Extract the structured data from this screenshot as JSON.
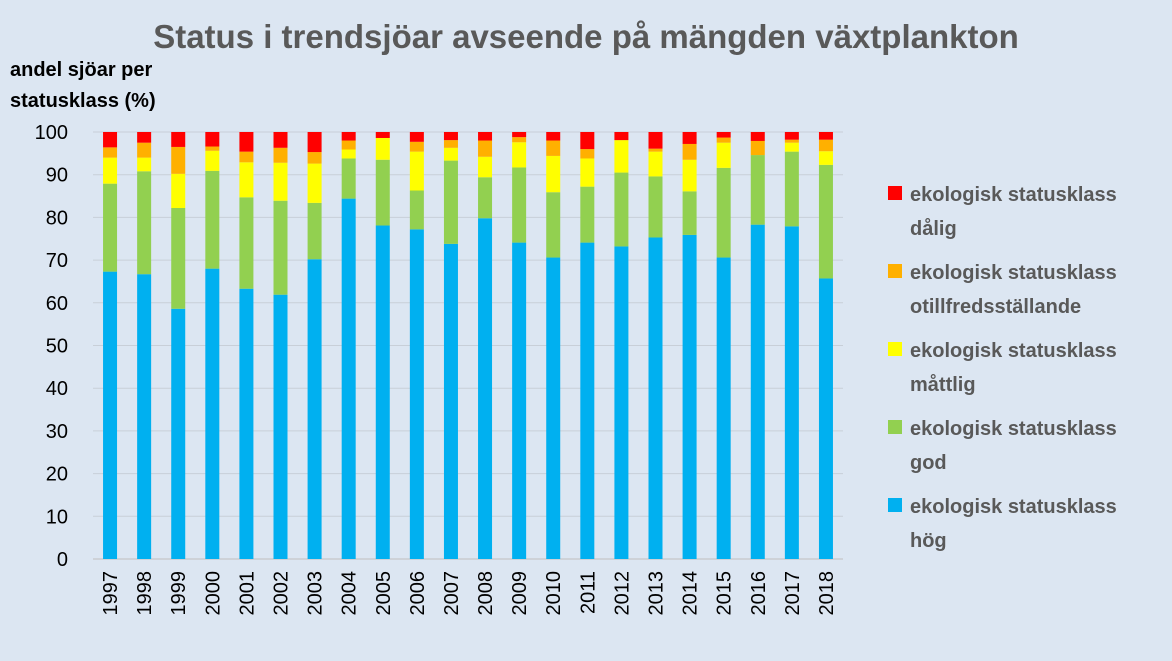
{
  "chart_data": {
    "type": "bar",
    "stacked": true,
    "title": "Status i trendsjöar avseende på mängden växtplankton",
    "ylabel_lines": [
      "andel sjöar per",
      "statusklass (%)"
    ],
    "xlabel": "",
    "ylim": [
      0,
      100
    ],
    "yticks": [
      0,
      10,
      20,
      30,
      40,
      50,
      60,
      70,
      80,
      90,
      100
    ],
    "grid": "horizontal",
    "legend_position": "right",
    "categories": [
      "1997",
      "1998",
      "1999",
      "2000",
      "2001",
      "2002",
      "2003",
      "2004",
      "2005",
      "2006",
      "2007",
      "2008",
      "2009",
      "2010",
      "2011",
      "2012",
      "2013",
      "2014",
      "2015",
      "2016",
      "2017",
      "2018"
    ],
    "series": [
      {
        "name": "ekologisk statusklass hög",
        "name_lines": [
          "ekologisk statusklass",
          "hög"
        ],
        "color": "#00b0f0",
        "values": [
          67.3,
          66.7,
          58.6,
          68.0,
          63.3,
          61.9,
          70.2,
          84.4,
          78.1,
          77.2,
          73.8,
          79.8,
          74.1,
          70.6,
          74.1,
          73.2,
          75.3,
          75.9,
          70.6,
          78.3,
          77.9,
          65.7
        ]
      },
      {
        "name": "ekologisk statusklass god",
        "name_lines": [
          "ekologisk statusklass",
          "god"
        ],
        "color": "#92d050",
        "values": [
          20.6,
          24.1,
          23.6,
          22.9,
          21.4,
          22.0,
          13.2,
          9.4,
          15.4,
          9.1,
          19.5,
          9.6,
          17.6,
          15.3,
          13.1,
          17.3,
          14.3,
          10.2,
          21.0,
          16.3,
          17.5,
          26.6
        ]
      },
      {
        "name": "ekologisk statusklass måttlig",
        "name_lines": [
          "ekologisk statusklass",
          "måttlig"
        ],
        "color": "#ffff00",
        "values": [
          6.1,
          3.2,
          8.0,
          4.7,
          8.2,
          8.9,
          9.2,
          2.1,
          5.1,
          9.1,
          3.0,
          4.8,
          5.9,
          8.5,
          6.6,
          7.6,
          5.8,
          7.4,
          5.9,
          0.0,
          2.1,
          3.2
        ]
      },
      {
        "name": "ekologisk statusklass otillfredsställande",
        "name_lines": [
          "ekologisk statusklass",
          "otillfredsställande"
        ],
        "color": "#ffb000",
        "values": [
          2.4,
          3.5,
          6.3,
          1.0,
          2.5,
          3.5,
          2.7,
          2.1,
          0.0,
          2.3,
          1.8,
          3.8,
          1.2,
          3.6,
          2.2,
          0.0,
          0.7,
          3.7,
          1.2,
          3.3,
          0.7,
          2.7
        ]
      },
      {
        "name": "ekologisk statusklass dålig",
        "name_lines": [
          "ekologisk statusklass",
          "dålig"
        ],
        "color": "#ff0000",
        "values": [
          3.6,
          2.5,
          3.5,
          3.4,
          4.6,
          3.7,
          4.7,
          2.0,
          1.4,
          2.3,
          1.9,
          2.0,
          1.2,
          2.0,
          4.0,
          1.9,
          3.9,
          2.8,
          1.3,
          2.1,
          1.8,
          1.8
        ]
      }
    ]
  }
}
